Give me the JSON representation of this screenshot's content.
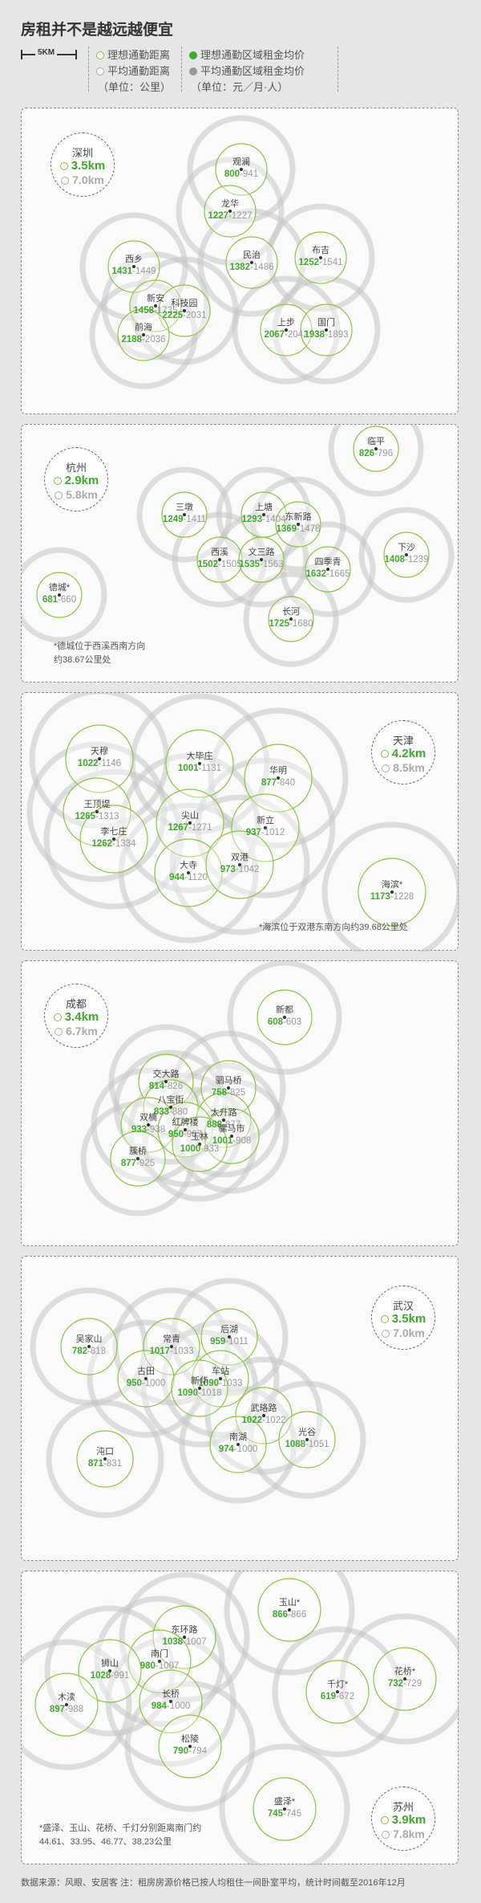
{
  "title": "房租并不是越远越便宜",
  "legend": {
    "scale": "5KM",
    "ideal_distance": "理想通勤距离",
    "avg_distance": "平均通勤距离",
    "distance_unit": "（单位：公里）",
    "ideal_rent": "理想通勤区域租金均价",
    "avg_rent": "平均通勤区域租金均价",
    "rent_unit": "（单位：元／月·人）"
  },
  "colors": {
    "ideal": "#3faa2b",
    "ideal_ring": "#8bc53f",
    "avg_ring": "#c4c4c4",
    "avg_text": "#999999"
  },
  "cities": [
    {
      "name": "深圳",
      "ideal": "3.5km",
      "avg": "7.0km",
      "note": [],
      "districts": [
        {
          "name": "观澜",
          "ideal_rent": "800",
          "avg_rent": "941"
        },
        {
          "name": "龙华",
          "ideal_rent": "1227",
          "avg_rent": "1227"
        },
        {
          "name": "民治",
          "ideal_rent": "1382",
          "avg_rent": "1486"
        },
        {
          "name": "布吉",
          "ideal_rent": "1252",
          "avg_rent": "1541"
        },
        {
          "name": "西乡",
          "ideal_rent": "1431",
          "avg_rent": "1449"
        },
        {
          "name": "新安",
          "ideal_rent": "1458",
          "avg_rent": "1735"
        },
        {
          "name": "科技园",
          "ideal_rent": "2225",
          "avg_rent": "2031"
        },
        {
          "name": "前海",
          "ideal_rent": "2188",
          "avg_rent": "2036"
        },
        {
          "name": "上步",
          "ideal_rent": "2067",
          "avg_rent": "2042"
        },
        {
          "name": "国门",
          "ideal_rent": "1938",
          "avg_rent": "1893"
        }
      ]
    },
    {
      "name": "杭州",
      "ideal": "2.9km",
      "avg": "5.8km",
      "note": [
        "*德城位于西溪西南方向",
        "约38.67公里处"
      ],
      "districts": [
        {
          "name": "临平",
          "ideal_rent": "826",
          "avg_rent": "796"
        },
        {
          "name": "三墩",
          "ideal_rent": "1249",
          "avg_rent": "1411"
        },
        {
          "name": "上塘",
          "ideal_rent": "1293",
          "avg_rent": "1404"
        },
        {
          "name": "东新路",
          "ideal_rent": "1369",
          "avg_rent": "1478"
        },
        {
          "name": "下沙",
          "ideal_rent": "1408",
          "avg_rent": "1239"
        },
        {
          "name": "西溪",
          "ideal_rent": "1502",
          "avg_rent": "1505"
        },
        {
          "name": "文三路",
          "ideal_rent": "1535",
          "avg_rent": "1563"
        },
        {
          "name": "四季青",
          "ideal_rent": "1632",
          "avg_rent": "1665"
        },
        {
          "name": "德城*",
          "ideal_rent": "681",
          "avg_rent": "660"
        },
        {
          "name": "长河",
          "ideal_rent": "1725",
          "avg_rent": "1680"
        }
      ]
    },
    {
      "name": "天津",
      "ideal": "4.2km",
      "avg": "8.5km",
      "note": [
        "*海滨位于双港东南方向约39.68公里处"
      ],
      "districts": [
        {
          "name": "天穆",
          "ideal_rent": "1022",
          "avg_rent": "1146"
        },
        {
          "name": "大毕庄",
          "ideal_rent": "1001",
          "avg_rent": "1131"
        },
        {
          "name": "华明",
          "ideal_rent": "877",
          "avg_rent": "840"
        },
        {
          "name": "王顶堤",
          "ideal_rent": "1265",
          "avg_rent": "1313"
        },
        {
          "name": "尖山",
          "ideal_rent": "1267",
          "avg_rent": "1271"
        },
        {
          "name": "新立",
          "ideal_rent": "937",
          "avg_rent": "1012"
        },
        {
          "name": "李七庄",
          "ideal_rent": "1262",
          "avg_rent": "1334"
        },
        {
          "name": "大寺",
          "ideal_rent": "944",
          "avg_rent": "1120"
        },
        {
          "name": "双港",
          "ideal_rent": "973",
          "avg_rent": "1042"
        },
        {
          "name": "海滨*",
          "ideal_rent": "1173",
          "avg_rent": "1228"
        }
      ]
    },
    {
      "name": "成都",
      "ideal": "3.4km",
      "avg": "6.7km",
      "note": [],
      "districts": [
        {
          "name": "新都",
          "ideal_rent": "608",
          "avg_rent": "603"
        },
        {
          "name": "交大路",
          "ideal_rent": "814",
          "avg_rent": "826"
        },
        {
          "name": "驷马桥",
          "ideal_rent": "758",
          "avg_rent": "825"
        },
        {
          "name": "八宝街",
          "ideal_rent": "833",
          "avg_rent": "880"
        },
        {
          "name": "太升路",
          "ideal_rent": "888",
          "avg_rent": "877"
        },
        {
          "name": "双楠",
          "ideal_rent": "933",
          "avg_rent": "938"
        },
        {
          "name": "红牌楼",
          "ideal_rent": "950",
          "avg_rent": "967"
        },
        {
          "name": "骡马市",
          "ideal_rent": "1001",
          "avg_rent": "908"
        },
        {
          "name": "玉林",
          "ideal_rent": "1000",
          "avg_rent": "933"
        },
        {
          "name": "簇桥",
          "ideal_rent": "877",
          "avg_rent": "925"
        }
      ]
    },
    {
      "name": "武汉",
      "ideal": "3.5km",
      "avg": "7.0km",
      "note": [],
      "districts": [
        {
          "name": "吴家山",
          "ideal_rent": "782",
          "avg_rent": "818"
        },
        {
          "name": "常青",
          "ideal_rent": "1017",
          "avg_rent": "1033"
        },
        {
          "name": "后湖",
          "ideal_rent": "959",
          "avg_rent": "1011"
        },
        {
          "name": "古田",
          "ideal_rent": "950",
          "avg_rent": "1000"
        },
        {
          "name": "车站",
          "ideal_rent": "1090",
          "avg_rent": "1033"
        },
        {
          "name": "新华",
          "ideal_rent": "1090",
          "avg_rent": "1018"
        },
        {
          "name": "武珞路",
          "ideal_rent": "1022",
          "avg_rent": "1022"
        },
        {
          "name": "南湖",
          "ideal_rent": "974",
          "avg_rent": "1000"
        },
        {
          "name": "光谷",
          "ideal_rent": "1088",
          "avg_rent": "1051"
        },
        {
          "name": "沌口",
          "ideal_rent": "871",
          "avg_rent": "831"
        }
      ]
    },
    {
      "name": "苏州",
      "ideal": "3.9km",
      "avg": "7.8km",
      "note": [
        "*盛泽、玉山、花桥、千灯分别距离南门约",
        "44.61、33.95、46.77、38.23公里"
      ],
      "districts": [
        {
          "name": "玉山*",
          "ideal_rent": "866",
          "avg_rent": "866"
        },
        {
          "name": "东环路",
          "ideal_rent": "1038",
          "avg_rent": "1007"
        },
        {
          "name": "南门",
          "ideal_rent": "980",
          "avg_rent": "1007"
        },
        {
          "name": "狮山",
          "ideal_rent": "1028",
          "avg_rent": "991"
        },
        {
          "name": "长桥",
          "ideal_rent": "984",
          "avg_rent": "1000"
        },
        {
          "name": "木渎",
          "ideal_rent": "897",
          "avg_rent": "988"
        },
        {
          "name": "花桥*",
          "ideal_rent": "732",
          "avg_rent": "729"
        },
        {
          "name": "千灯*",
          "ideal_rent": "619",
          "avg_rent": "672"
        },
        {
          "name": "松陵",
          "ideal_rent": "790",
          "avg_rent": "794"
        },
        {
          "name": "盛泽*",
          "ideal_rent": "745",
          "avg_rent": "745"
        }
      ]
    }
  ],
  "source": "数据来源：风眼、安居客  注：租房房源价格已按人均租住一间卧室平均，统计时间截至2016年12月"
}
